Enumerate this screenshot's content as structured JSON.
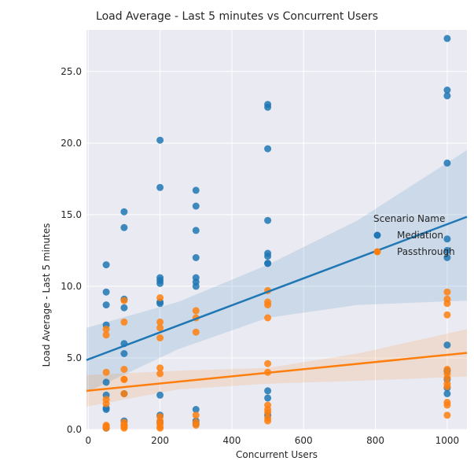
{
  "chart_data": {
    "type": "scatter",
    "title": "Load Average - Last 5 minutes vs Concurrent Users",
    "xlabel": "Concurrent Users",
    "ylabel": "Load Average - Last 5 minutes",
    "xlim": [
      -5,
      1055
    ],
    "ylim": [
      0,
      27.9
    ],
    "x_ticks": [
      0,
      200,
      400,
      600,
      800,
      1000
    ],
    "x_tick_labels": [
      "0",
      "200",
      "400",
      "600",
      "800",
      "1000"
    ],
    "y_ticks": [
      0,
      5,
      10,
      15,
      20,
      25
    ],
    "y_tick_labels": [
      "0.0",
      "5.0",
      "10.0",
      "15.0",
      "20.0",
      "25.0"
    ],
    "grid": true,
    "legend": {
      "title": "Scenario Name",
      "placement": "right"
    },
    "series": [
      {
        "name": "Mediation",
        "color": "#1f77b4",
        "points": [
          [
            50,
            11.5
          ],
          [
            50,
            9.6
          ],
          [
            50,
            8.7
          ],
          [
            50,
            7.3
          ],
          [
            50,
            3.3
          ],
          [
            50,
            2.4
          ],
          [
            50,
            1.5
          ],
          [
            50,
            1.4
          ],
          [
            50,
            0.2
          ],
          [
            50,
            0.1
          ],
          [
            100,
            15.2
          ],
          [
            100,
            14.1
          ],
          [
            100,
            9.1
          ],
          [
            100,
            8.5
          ],
          [
            100,
            6.0
          ],
          [
            100,
            5.3
          ],
          [
            100,
            2.5
          ],
          [
            100,
            0.6
          ],
          [
            100,
            0.3
          ],
          [
            200,
            20.2
          ],
          [
            200,
            16.9
          ],
          [
            200,
            10.6
          ],
          [
            200,
            10.4
          ],
          [
            200,
            10.2
          ],
          [
            200,
            8.9
          ],
          [
            200,
            8.8
          ],
          [
            200,
            2.4
          ],
          [
            200,
            1.0
          ],
          [
            200,
            0.5
          ],
          [
            300,
            16.7
          ],
          [
            300,
            15.6
          ],
          [
            300,
            13.9
          ],
          [
            300,
            12.0
          ],
          [
            300,
            10.6
          ],
          [
            300,
            10.3
          ],
          [
            300,
            10.0
          ],
          [
            300,
            1.4
          ],
          [
            300,
            0.6
          ],
          [
            300,
            0.4
          ],
          [
            500,
            22.7
          ],
          [
            500,
            22.5
          ],
          [
            500,
            19.6
          ],
          [
            500,
            14.6
          ],
          [
            500,
            12.3
          ],
          [
            500,
            12.1
          ],
          [
            500,
            11.6
          ],
          [
            500,
            11.6
          ],
          [
            500,
            2.7
          ],
          [
            500,
            2.2
          ],
          [
            500,
            1.0
          ],
          [
            1000,
            27.3
          ],
          [
            1000,
            23.7
          ],
          [
            1000,
            23.3
          ],
          [
            1000,
            18.6
          ],
          [
            1000,
            13.3
          ],
          [
            1000,
            12.5
          ],
          [
            1000,
            12.0
          ],
          [
            1000,
            5.9
          ],
          [
            1000,
            4.1
          ],
          [
            1000,
            3.5
          ],
          [
            1000,
            2.9
          ],
          [
            1000,
            2.5
          ]
        ],
        "regression": {
          "x": [
            -5,
            1055
          ],
          "y": [
            4.85,
            14.85
          ]
        },
        "ci_band": {
          "x": [
            -5,
            250,
            500,
            750,
            1055
          ],
          "lower": [
            2.6,
            5.6,
            7.8,
            8.7,
            9.0
          ],
          "upper": [
            7.1,
            8.9,
            11.5,
            14.6,
            19.5
          ]
        }
      },
      {
        "name": "Passthrough",
        "color": "#ff7f0e",
        "points": [
          [
            50,
            7.0
          ],
          [
            50,
            6.6
          ],
          [
            50,
            4.0
          ],
          [
            50,
            2.1
          ],
          [
            50,
            1.8
          ],
          [
            50,
            0.3
          ],
          [
            50,
            0.2
          ],
          [
            50,
            0.1
          ],
          [
            100,
            9.0
          ],
          [
            100,
            7.5
          ],
          [
            100,
            4.2
          ],
          [
            100,
            3.5
          ],
          [
            100,
            3.5
          ],
          [
            100,
            2.5
          ],
          [
            100,
            0.5
          ],
          [
            100,
            0.3
          ],
          [
            100,
            0.2
          ],
          [
            100,
            0.1
          ],
          [
            200,
            9.2
          ],
          [
            200,
            7.5
          ],
          [
            200,
            7.1
          ],
          [
            200,
            6.4
          ],
          [
            200,
            4.3
          ],
          [
            200,
            3.9
          ],
          [
            200,
            0.9
          ],
          [
            200,
            0.6
          ],
          [
            200,
            0.4
          ],
          [
            200,
            0.2
          ],
          [
            200,
            0.1
          ],
          [
            300,
            8.3
          ],
          [
            300,
            7.8
          ],
          [
            300,
            6.8
          ],
          [
            300,
            1.0
          ],
          [
            300,
            0.5
          ],
          [
            300,
            0.3
          ],
          [
            500,
            9.7
          ],
          [
            500,
            8.9
          ],
          [
            500,
            8.7
          ],
          [
            500,
            7.8
          ],
          [
            500,
            4.6
          ],
          [
            500,
            4.0
          ],
          [
            500,
            1.7
          ],
          [
            500,
            1.4
          ],
          [
            500,
            1.2
          ],
          [
            500,
            0.8
          ],
          [
            500,
            0.6
          ],
          [
            1000,
            9.6
          ],
          [
            1000,
            9.1
          ],
          [
            1000,
            8.8
          ],
          [
            1000,
            8.0
          ],
          [
            1000,
            4.2
          ],
          [
            1000,
            3.9
          ],
          [
            1000,
            3.6
          ],
          [
            1000,
            3.2
          ],
          [
            1000,
            3.0
          ],
          [
            1000,
            1.9
          ],
          [
            1000,
            1.7
          ],
          [
            1000,
            1.0
          ]
        ],
        "regression": {
          "x": [
            -5,
            1055
          ],
          "y": [
            2.7,
            5.35
          ]
        },
        "ci_band": {
          "x": [
            -5,
            250,
            500,
            750,
            1055
          ],
          "lower": [
            1.6,
            2.8,
            3.2,
            3.4,
            3.7
          ],
          "upper": [
            3.8,
            4.1,
            4.3,
            5.3,
            7.0
          ]
        }
      }
    ]
  }
}
